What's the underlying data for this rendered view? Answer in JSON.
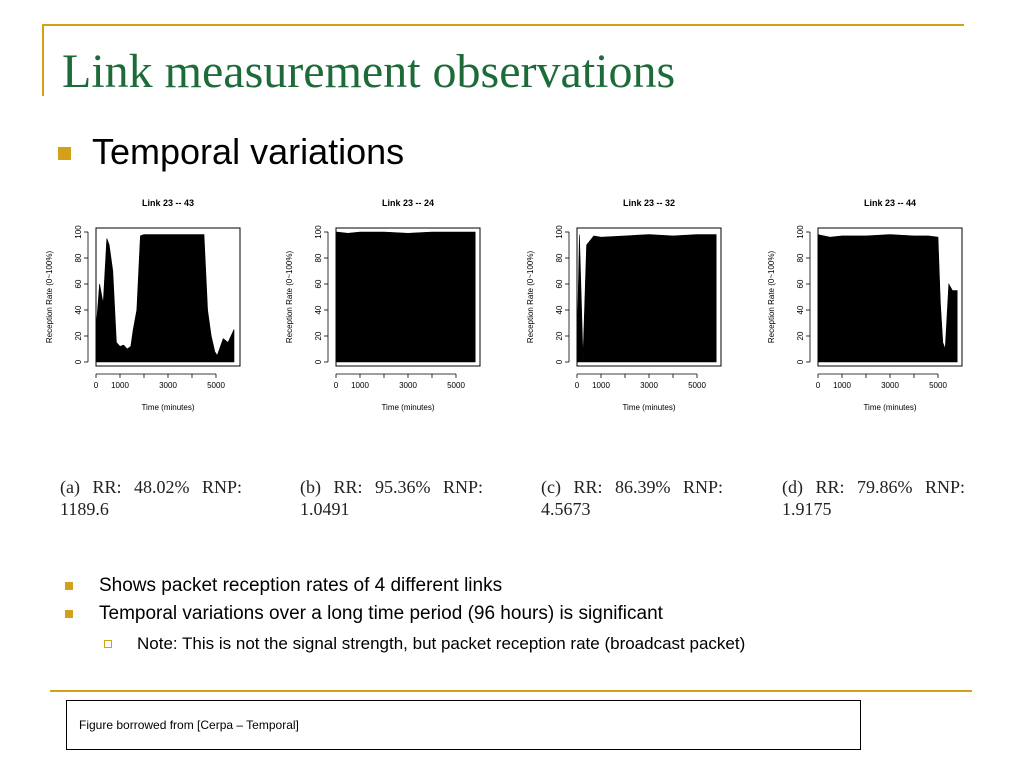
{
  "slide": {
    "title": "Link measurement observations",
    "subtitle": "Temporal variations",
    "colors": {
      "accent": "#d4a017",
      "title": "#1e6b3a"
    }
  },
  "chart_data": [
    {
      "type": "area",
      "title": "Link 23 -- 43",
      "xlabel": "Time (minutes)",
      "ylabel": "Reception Rate (0~100%)",
      "xlim": [
        0,
        6000
      ],
      "ylim": [
        0,
        100
      ],
      "xticks": [
        "0",
        "1000",
        "3000",
        "5000"
      ],
      "xtick_values": [
        0,
        1000,
        3000,
        5000
      ],
      "yticks": [
        "0",
        "20",
        "40",
        "60",
        "80",
        "100"
      ],
      "x": [
        0,
        150,
        300,
        450,
        550,
        700,
        850,
        1000,
        1150,
        1300,
        1450,
        1550,
        1700,
        1850,
        2000,
        2300,
        2700,
        3100,
        3500,
        3900,
        4300,
        4500,
        4650,
        4800,
        4950,
        5050,
        5300,
        5500,
        5750
      ],
      "y": [
        25,
        60,
        45,
        95,
        90,
        70,
        15,
        12,
        13,
        10,
        12,
        25,
        40,
        97,
        98,
        98,
        98,
        98,
        98,
        98,
        98,
        98,
        40,
        20,
        8,
        5,
        18,
        15,
        25
      ],
      "caption": "(a) RR: 48.02% RNP:",
      "caption2": "1189.6"
    },
    {
      "type": "area",
      "title": "Link 23 -- 24",
      "xlabel": "Time (minutes)",
      "ylabel": "Reception Rate (0~100%)",
      "xlim": [
        0,
        6000
      ],
      "ylim": [
        0,
        100
      ],
      "xticks": [
        "0",
        "1000",
        "3000",
        "5000"
      ],
      "xtick_values": [
        0,
        1000,
        3000,
        5000
      ],
      "yticks": [
        "0",
        "20",
        "40",
        "60",
        "80",
        "100"
      ],
      "x": [
        0,
        500,
        1000,
        2000,
        3000,
        4000,
        5000,
        5800
      ],
      "y": [
        100,
        99,
        100,
        100,
        99,
        100,
        100,
        100
      ],
      "caption": "(b) RR: 95.36% RNP:",
      "caption2": "1.0491"
    },
    {
      "type": "area",
      "title": "Link 23 -- 32",
      "xlabel": "Time (minutes)",
      "ylabel": "Reception Rate (0~100%)",
      "xlim": [
        0,
        6000
      ],
      "ylim": [
        0,
        100
      ],
      "xticks": [
        "0",
        "1000",
        "3000",
        "5000"
      ],
      "xtick_values": [
        0,
        1000,
        3000,
        5000
      ],
      "yticks": [
        "0",
        "20",
        "40",
        "60",
        "80",
        "100"
      ],
      "x": [
        0,
        100,
        250,
        400,
        700,
        1000,
        2000,
        3000,
        4000,
        5000,
        5800
      ],
      "y": [
        5,
        98,
        3,
        90,
        97,
        96,
        97,
        98,
        97,
        98,
        98
      ],
      "caption": "(c) RR: 86.39% RNP:",
      "caption2": "4.5673"
    },
    {
      "type": "area",
      "title": "Link 23 -- 44",
      "xlabel": "Time (minutes)",
      "ylabel": "Reception Rate (0~100%)",
      "xlim": [
        0,
        6000
      ],
      "ylim": [
        0,
        100
      ],
      "xticks": [
        "0",
        "1000",
        "3000",
        "5000"
      ],
      "xtick_values": [
        0,
        1000,
        3000,
        5000
      ],
      "yticks": [
        "0",
        "20",
        "40",
        "60",
        "80",
        "100"
      ],
      "x": [
        0,
        500,
        1000,
        2000,
        3000,
        4000,
        4600,
        5000,
        5100,
        5200,
        5300,
        5450,
        5600,
        5800
      ],
      "y": [
        98,
        96,
        97,
        97,
        98,
        97,
        97,
        96,
        45,
        15,
        10,
        60,
        55,
        55
      ],
      "caption": "(d) RR: 79.86% RNP:",
      "caption2": "1.9175"
    }
  ],
  "bullets": [
    "Shows packet reception rates of 4 different links",
    "Temporal variations over a long time period (96 hours) is significant"
  ],
  "sub_bullet": "Note: This is not the signal strength, but packet reception rate (broadcast packet)",
  "footer": "Figure borrowed from [Cerpa – Temporal]"
}
